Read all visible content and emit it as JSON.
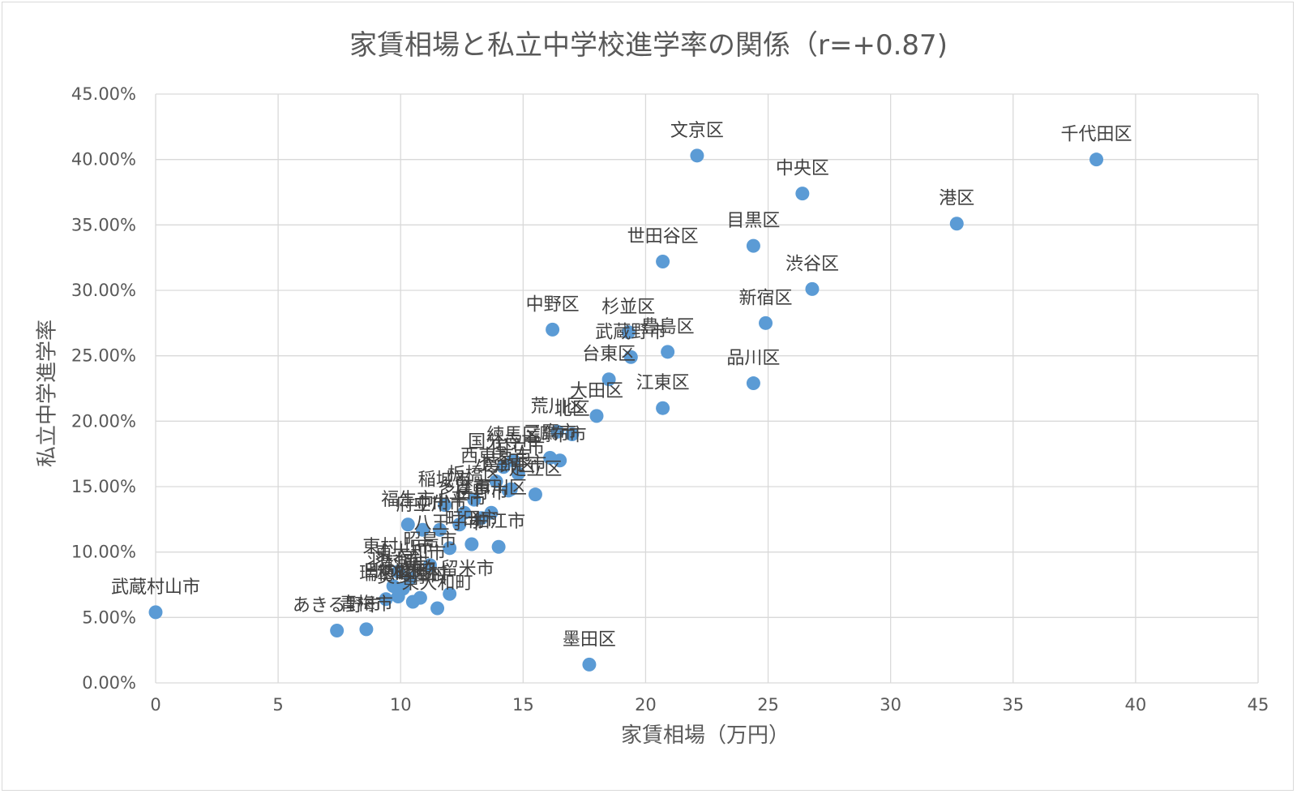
{
  "chart_data": {
    "type": "scatter",
    "title": "家賃相場と私立中学校進学率の関係（r=+0.87)",
    "xlabel": "家賃相場（万円）",
    "ylabel": "私立中学進学率",
    "xlim": [
      0,
      45
    ],
    "ylim": [
      0,
      0.45
    ],
    "x_ticks": [
      "0",
      "5",
      "10",
      "15",
      "20",
      "25",
      "30",
      "35",
      "40",
      "45"
    ],
    "y_ticks": [
      "0.00%",
      "5.00%",
      "10.00%",
      "15.00%",
      "20.00%",
      "25.00%",
      "30.00%",
      "35.00%",
      "40.00%",
      "45.00%"
    ],
    "grid": true,
    "marker_color": "#5b9bd5",
    "points": [
      {
        "label": "千代田区",
        "x": 38.4,
        "y": 0.4
      },
      {
        "label": "文京区",
        "x": 22.1,
        "y": 0.403
      },
      {
        "label": "中央区",
        "x": 26.4,
        "y": 0.374
      },
      {
        "label": "港区",
        "x": 32.7,
        "y": 0.351
      },
      {
        "label": "目黒区",
        "x": 24.4,
        "y": 0.334
      },
      {
        "label": "世田谷区",
        "x": 20.7,
        "y": 0.322
      },
      {
        "label": "渋谷区",
        "x": 26.8,
        "y": 0.301
      },
      {
        "label": "新宿区",
        "x": 24.9,
        "y": 0.275
      },
      {
        "label": "中野区",
        "x": 16.2,
        "y": 0.27
      },
      {
        "label": "杉並区",
        "x": 19.3,
        "y": 0.268
      },
      {
        "label": "豊島区",
        "x": 20.9,
        "y": 0.253
      },
      {
        "label": "武蔵野市",
        "x": 19.4,
        "y": 0.249
      },
      {
        "label": "台東区",
        "x": 18.5,
        "y": 0.232
      },
      {
        "label": "品川区",
        "x": 24.4,
        "y": 0.229
      },
      {
        "label": "江東区",
        "x": 20.7,
        "y": 0.21
      },
      {
        "label": "大田区",
        "x": 18.0,
        "y": 0.204
      },
      {
        "label": "北区",
        "x": 17.0,
        "y": 0.19
      },
      {
        "label": "荒川区",
        "x": 16.4,
        "y": 0.192
      },
      {
        "label": "調布市",
        "x": 16.5,
        "y": 0.17
      },
      {
        "label": "三鷹市",
        "x": 16.1,
        "y": 0.172
      },
      {
        "label": "練馬区",
        "x": 14.6,
        "y": 0.17
      },
      {
        "label": "国分寺市",
        "x": 14.2,
        "y": 0.165
      },
      {
        "label": "国立市",
        "x": 14.8,
        "y": 0.16
      },
      {
        "label": "西東京市",
        "x": 13.9,
        "y": 0.154
      },
      {
        "label": "小金井市",
        "x": 14.5,
        "y": 0.148
      },
      {
        "label": "足立区",
        "x": 15.5,
        "y": 0.144
      },
      {
        "label": "葛飾区",
        "x": 14.4,
        "y": 0.147
      },
      {
        "label": "板橋区",
        "x": 13.0,
        "y": 0.14
      },
      {
        "label": "稲城市",
        "x": 11.8,
        "y": 0.136
      },
      {
        "label": "多摩市",
        "x": 12.6,
        "y": 0.13
      },
      {
        "label": "日野市",
        "x": 13.3,
        "y": 0.126
      },
      {
        "label": "江戸川区",
        "x": 13.7,
        "y": 0.13
      },
      {
        "label": "小平市",
        "x": 12.4,
        "y": 0.121
      },
      {
        "label": "立川市",
        "x": 11.6,
        "y": 0.117
      },
      {
        "label": "府中市",
        "x": 10.9,
        "y": 0.117
      },
      {
        "label": "福生市",
        "x": 10.3,
        "y": 0.121
      },
      {
        "label": "町田市",
        "x": 12.9,
        "y": 0.106
      },
      {
        "label": "狛江市",
        "x": 14.0,
        "y": 0.104
      },
      {
        "label": "八王子市",
        "x": 12.0,
        "y": 0.103
      },
      {
        "label": "昭島市",
        "x": 11.2,
        "y": 0.09
      },
      {
        "label": "東村山市",
        "x": 9.9,
        "y": 0.085
      },
      {
        "label": "東大和市",
        "x": 10.4,
        "y": 0.08
      },
      {
        "label": "羽村市",
        "x": 9.7,
        "y": 0.074
      },
      {
        "label": "清瀬市",
        "x": 10.1,
        "y": 0.072
      },
      {
        "label": "東久留米市",
        "x": 12.0,
        "y": 0.068
      },
      {
        "label": "武蔵村山市",
        "x": 0.0,
        "y": 0.054
      },
      {
        "label": "あきる野市",
        "x": 7.4,
        "y": 0.04
      },
      {
        "label": "青梅市",
        "x": 8.6,
        "y": 0.041
      },
      {
        "label": "瑞穂町",
        "x": 9.4,
        "y": 0.064
      },
      {
        "label": "日の出町",
        "x": 9.9,
        "y": 0.066
      },
      {
        "label": "奥多摩町",
        "x": 10.5,
        "y": 0.062
      },
      {
        "label": "檜原村",
        "x": 10.8,
        "y": 0.065
      },
      {
        "label": "東大和町",
        "x": 11.5,
        "y": 0.057
      },
      {
        "label": "墨田区",
        "x": 17.7,
        "y": 0.014
      }
    ]
  }
}
